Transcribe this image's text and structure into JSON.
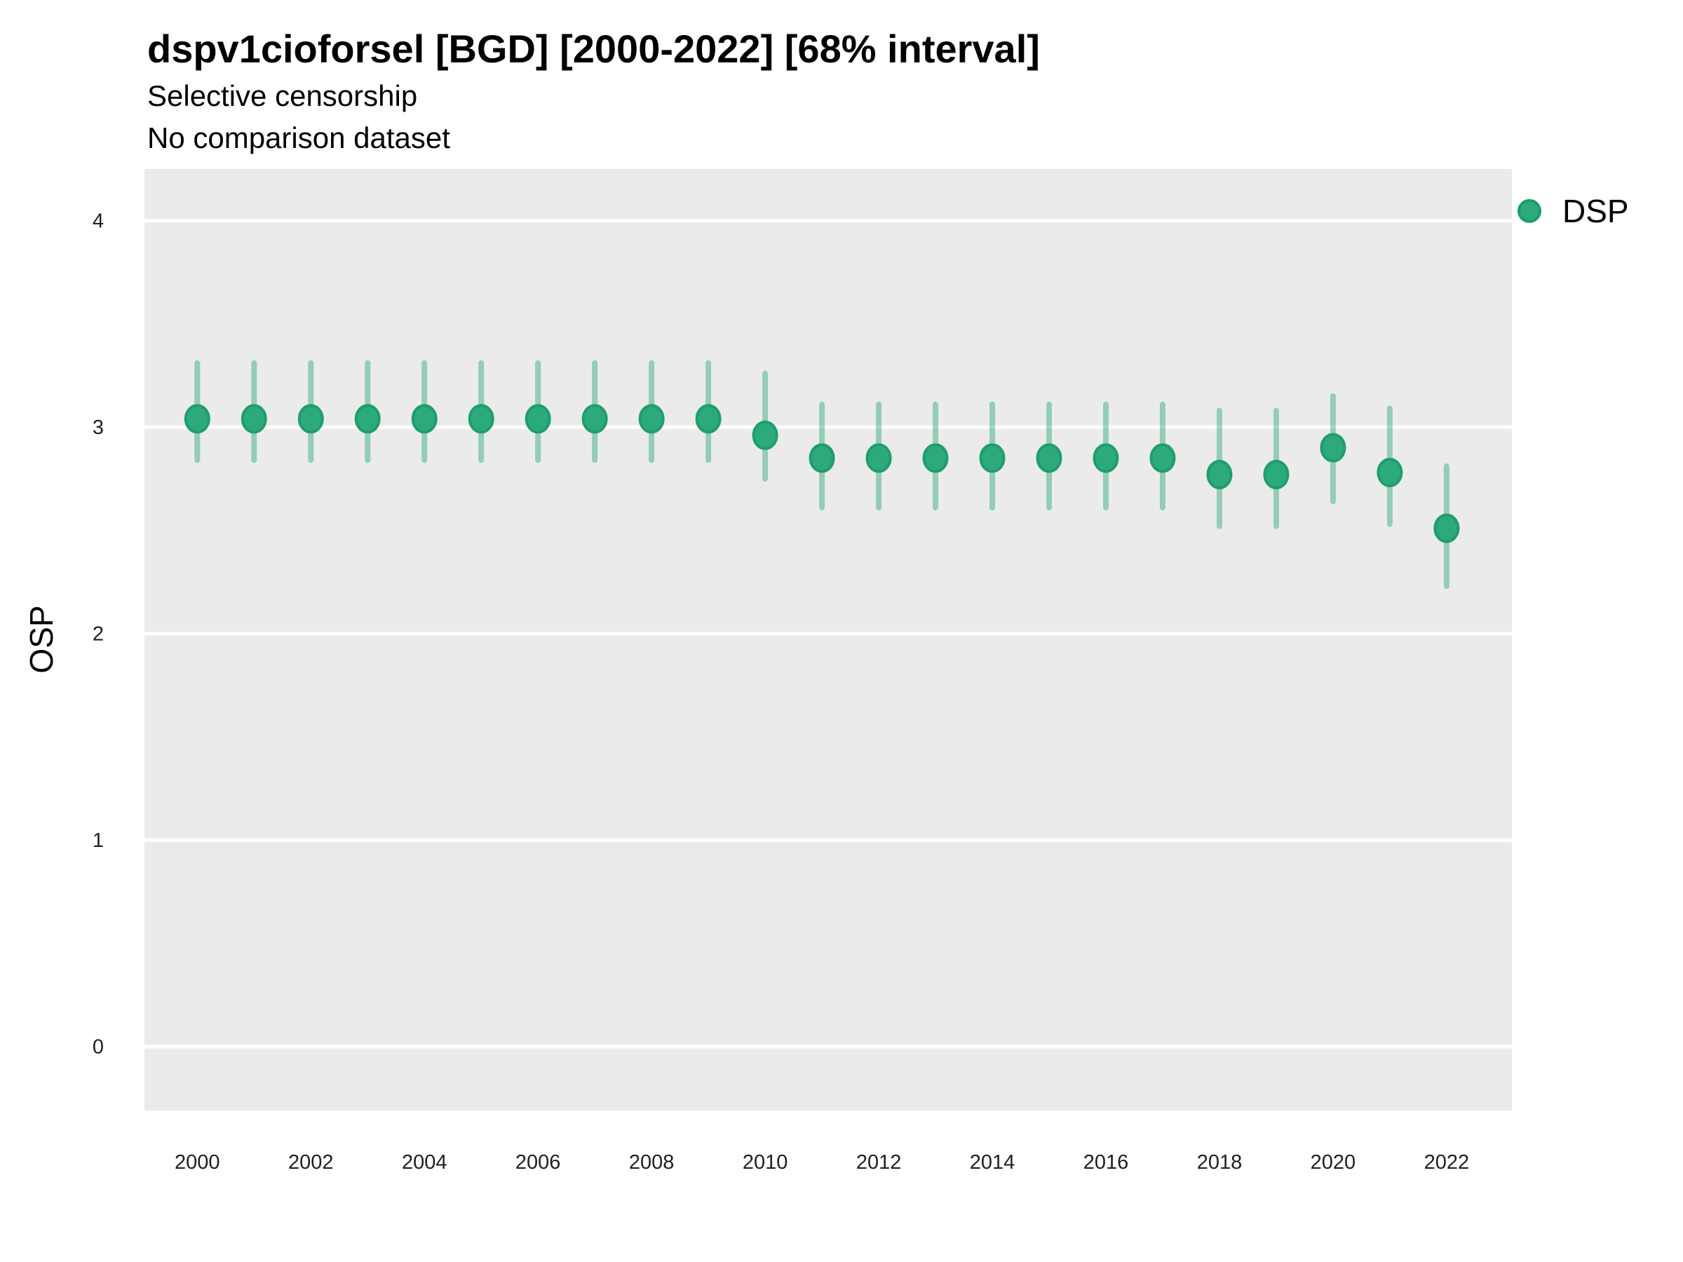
{
  "header": {
    "title": "dspv1cioforsel [BGD] [2000-2022] [68% interval]",
    "subtitle1": "Selective censorship",
    "subtitle2": "No comparison dataset"
  },
  "axes": {
    "y_title": "OSP",
    "x_title": ""
  },
  "legend": {
    "items": [
      {
        "label": "DSP",
        "color": "#2DAA7C",
        "border_color": "#1C9C6B"
      }
    ],
    "position": "right"
  },
  "colors": {
    "panel_background": "#EBEBEB",
    "gridline": "#FFFFFF",
    "point_fill": "#2DAA7C",
    "point_stroke": "#1E9E6C",
    "interval_stroke": "#2AA876",
    "text": "#000000"
  },
  "chart_data": {
    "type": "scatter",
    "title": "dspv1cioforsel [BGD] [2000-2022] [68% interval]",
    "subtitle": [
      "Selective censorship",
      "No comparison dataset"
    ],
    "xlabel": "",
    "ylabel": "OSP",
    "grid": "major-y",
    "legend_position": "right",
    "interval_label": "68% interval",
    "x_ticks": [
      2000,
      2002,
      2004,
      2006,
      2008,
      2010,
      2012,
      2014,
      2016,
      2018,
      2020,
      2022
    ],
    "y_ticks": [
      0,
      1,
      2,
      3,
      4
    ],
    "xlim": [
      1999.07,
      2023.15
    ],
    "ylim": [
      -0.31,
      4.25
    ],
    "series": [
      {
        "name": "DSP",
        "points": [
          {
            "x": 2000,
            "y": 3.04,
            "lo": 2.84,
            "hi": 3.31
          },
          {
            "x": 2001,
            "y": 3.04,
            "lo": 2.84,
            "hi": 3.31
          },
          {
            "x": 2002,
            "y": 3.04,
            "lo": 2.84,
            "hi": 3.31
          },
          {
            "x": 2003,
            "y": 3.04,
            "lo": 2.84,
            "hi": 3.31
          },
          {
            "x": 2004,
            "y": 3.04,
            "lo": 2.84,
            "hi": 3.31
          },
          {
            "x": 2005,
            "y": 3.04,
            "lo": 2.84,
            "hi": 3.31
          },
          {
            "x": 2006,
            "y": 3.04,
            "lo": 2.84,
            "hi": 3.31
          },
          {
            "x": 2007,
            "y": 3.04,
            "lo": 2.84,
            "hi": 3.31
          },
          {
            "x": 2008,
            "y": 3.04,
            "lo": 2.84,
            "hi": 3.31
          },
          {
            "x": 2009,
            "y": 3.04,
            "lo": 2.84,
            "hi": 3.31
          },
          {
            "x": 2010,
            "y": 2.96,
            "lo": 2.75,
            "hi": 3.26
          },
          {
            "x": 2011,
            "y": 2.85,
            "lo": 2.61,
            "hi": 3.11
          },
          {
            "x": 2012,
            "y": 2.85,
            "lo": 2.61,
            "hi": 3.11
          },
          {
            "x": 2013,
            "y": 2.85,
            "lo": 2.61,
            "hi": 3.11
          },
          {
            "x": 2014,
            "y": 2.85,
            "lo": 2.61,
            "hi": 3.11
          },
          {
            "x": 2015,
            "y": 2.85,
            "lo": 2.61,
            "hi": 3.11
          },
          {
            "x": 2016,
            "y": 2.85,
            "lo": 2.61,
            "hi": 3.11
          },
          {
            "x": 2017,
            "y": 2.85,
            "lo": 2.61,
            "hi": 3.11
          },
          {
            "x": 2018,
            "y": 2.77,
            "lo": 2.52,
            "hi": 3.08
          },
          {
            "x": 2019,
            "y": 2.77,
            "lo": 2.52,
            "hi": 3.08
          },
          {
            "x": 2020,
            "y": 2.9,
            "lo": 2.64,
            "hi": 3.15
          },
          {
            "x": 2021,
            "y": 2.78,
            "lo": 2.53,
            "hi": 3.09
          },
          {
            "x": 2022,
            "y": 2.51,
            "lo": 2.23,
            "hi": 2.81
          }
        ]
      }
    ]
  }
}
